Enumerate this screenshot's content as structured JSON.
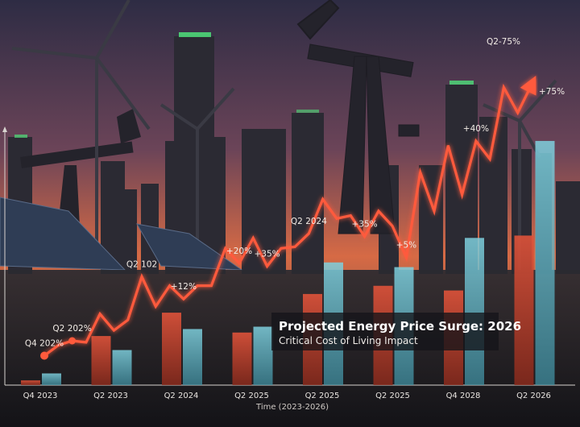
{
  "chart_data": {
    "type": "bar",
    "title": "Projected Energy Price Surge: 2026",
    "subtitle": "Critical Cost of Living Impact",
    "xlabel": "Time (2023-2026)",
    "ylabel": "",
    "categories": [
      "Q4 2023",
      "Q2 2023",
      "Q2 2024",
      "Q2 2025",
      "Q2 2025",
      "Q2 2025",
      "Q4 2028",
      "Q2 2026"
    ],
    "series": [
      {
        "values": [
          4,
          42,
          62,
          45,
          78,
          85,
          81,
          128
        ]
      },
      {
        "values": [
          10,
          30,
          48,
          50,
          105,
          101,
          126,
          209
        ]
      }
    ],
    "line": {
      "values": [
        10,
        17,
        20,
        19,
        38,
        27,
        34,
        63,
        43,
        57,
        48,
        57,
        57,
        82,
        72,
        89,
        70,
        82,
        83,
        92,
        115,
        102,
        104,
        90,
        107,
        97,
        76,
        133,
        107,
        151,
        118,
        154,
        142,
        190,
        173,
        192
      ],
      "labels": [
        {
          "text": "Q4 202%",
          "at": 0
        },
        {
          "text": "Q2 202%",
          "at": 2
        },
        {
          "text": "Q2 102",
          "at": 7
        },
        {
          "text": "+12%",
          "at": 10
        },
        {
          "text": "+20%",
          "at": 14
        },
        {
          "text": "+35%",
          "at": 16
        },
        {
          "text": "Q2 2024",
          "at": 19
        },
        {
          "text": "+35%",
          "at": 23
        },
        {
          "text": "+5%",
          "at": 26
        },
        {
          "text": "+40%",
          "at": 31
        },
        {
          "text": "Q2-75%",
          "at": 35
        },
        {
          "text": "+75%",
          "at": 36
        }
      ]
    },
    "grid": false,
    "legend": "none"
  },
  "colors": {
    "line": "#ff5a3c",
    "bar_red": "#c9432e",
    "bar_teal": "#5fb6c7",
    "sky_top": "#3a3550",
    "sky_horizon": "#e4784a"
  }
}
